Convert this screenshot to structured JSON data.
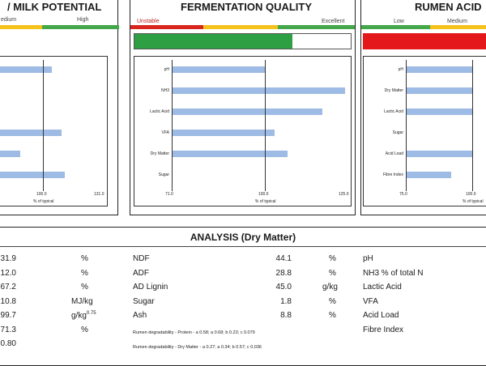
{
  "panels": {
    "milk": {
      "title": "/ MILK POTENTIAL",
      "scale_labels": [
        "edium",
        "High"
      ],
      "chart": {
        "bars": [
          {
            "label": "",
            "value": 105
          },
          {
            "label": "",
            "value": 68
          },
          {
            "label": "",
            "value": 73
          },
          {
            "label": "",
            "value": 110
          },
          {
            "label": "",
            "value": 88
          },
          {
            "label": "",
            "value": 112
          }
        ],
        "ticks": [
          "100.0",
          "131.0"
        ],
        "x_label": "% of typical"
      }
    },
    "fermentation": {
      "title": "FERMENTATION QUALITY",
      "scale_labels": [
        "Unstable",
        "Excellent"
      ],
      "bar_fill": 0.73,
      "chart": {
        "bars": [
          {
            "label": "pH",
            "value": 100
          },
          {
            "label": "NH3",
            "value": 125
          },
          {
            "label": "Lactic Acid",
            "value": 118
          },
          {
            "label": "VFA",
            "value": 103
          },
          {
            "label": "Dry Matter",
            "value": 107
          },
          {
            "label": "Sugar",
            "value": 71
          }
        ],
        "ticks": [
          "71.0",
          "100.0",
          "125.0"
        ],
        "x_label": "% of typical"
      }
    },
    "rumen": {
      "title": "RUMEN ACID",
      "scale_labels": [
        "Low",
        "Medium"
      ],
      "chart": {
        "bars": [
          {
            "label": "pH",
            "value": 130
          },
          {
            "label": "Dry Matter",
            "value": 130
          },
          {
            "label": "Lactic Acid",
            "value": 130
          },
          {
            "label": "Sugar",
            "value": 75
          },
          {
            "label": "Acid Load",
            "value": 130
          },
          {
            "label": "Fibre Index",
            "value": 92
          }
        ],
        "ticks": [
          "75.0",
          "100.0"
        ],
        "x_label": "% of typical"
      }
    }
  },
  "analysis": {
    "title": "ANALYSIS (Dry Matter)",
    "col1": [
      {
        "value": "31.9",
        "unit": "%"
      },
      {
        "value": "12.0",
        "unit": "%"
      },
      {
        "value": "67.2",
        "unit": "%"
      },
      {
        "value": "10.8",
        "unit": "MJ/kg"
      },
      {
        "value": "99.7",
        "unit": "g/kg",
        "sup": "0.75"
      },
      {
        "value": "71.3",
        "unit": "%"
      },
      {
        "value": "0.80",
        "unit": ""
      }
    ],
    "col2": [
      {
        "label": "NDF",
        "value": "44.1",
        "unit": "%"
      },
      {
        "label": "ADF",
        "value": "28.8",
        "unit": "%"
      },
      {
        "label": "AD Lignin",
        "value": "45.0",
        "unit": "g/kg"
      },
      {
        "label": "Sugar",
        "value": "1.8",
        "unit": "%"
      },
      {
        "label": "Ash",
        "value": "8.8",
        "unit": "%"
      }
    ],
    "degradability": [
      "Rumen degradability - Protein - a 0.58; a 0.68; b 0.23; c 0.079",
      "Rumen degradability - Dry Matter - a 0.27; a 0.34; b 0.57; c 0.036"
    ],
    "col3": [
      "pH",
      "NH3 % of total N",
      "Lactic Acid",
      "VFA",
      "Acid Load",
      "Fibre Index"
    ]
  }
}
